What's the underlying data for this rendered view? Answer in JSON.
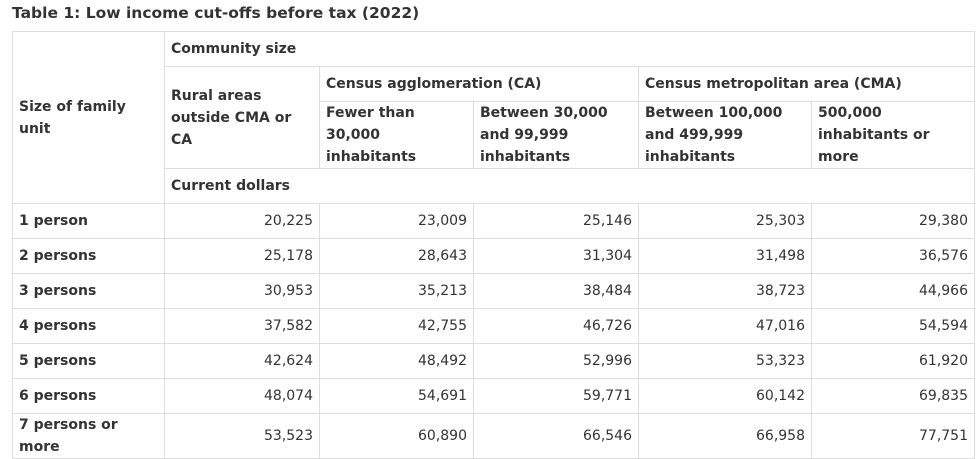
{
  "caption": "Table 1: Low income cut-offs before tax (2022)",
  "header": {
    "row_label": "Size of family unit",
    "community_size": "Community size",
    "rural": "Rural areas outside CMA or CA",
    "ca_group": "Census agglomeration (CA)",
    "cma_group": "Census metropolitan area (CMA)",
    "ca_small": "Fewer than 30,000 inhabitants",
    "ca_large": "Between 30,000 and 99,999 inhabitants",
    "cma_small": "Between 100,000 and 499,999 inhabitants",
    "cma_large": "500,000 inhabitants or more",
    "units": "Current dollars"
  },
  "rows": [
    {
      "label": "1 person",
      "values": [
        "20,225",
        "23,009",
        "25,146",
        "25,303",
        "29,380"
      ]
    },
    {
      "label": "2 persons",
      "values": [
        "25,178",
        "28,643",
        "31,304",
        "31,498",
        "36,576"
      ]
    },
    {
      "label": "3 persons",
      "values": [
        "30,953",
        "35,213",
        "38,484",
        "38,723",
        "44,966"
      ]
    },
    {
      "label": "4 persons",
      "values": [
        "37,582",
        "42,755",
        "46,726",
        "47,016",
        "54,594"
      ]
    },
    {
      "label": "5 persons",
      "values": [
        "42,624",
        "48,492",
        "52,996",
        "53,323",
        "61,920"
      ]
    },
    {
      "label": "6 persons",
      "values": [
        "48,074",
        "54,691",
        "59,771",
        "60,142",
        "69,835"
      ]
    },
    {
      "label": "7 persons or more",
      "values": [
        "53,523",
        "60,890",
        "66,546",
        "66,958",
        "77,751"
      ]
    }
  ]
}
